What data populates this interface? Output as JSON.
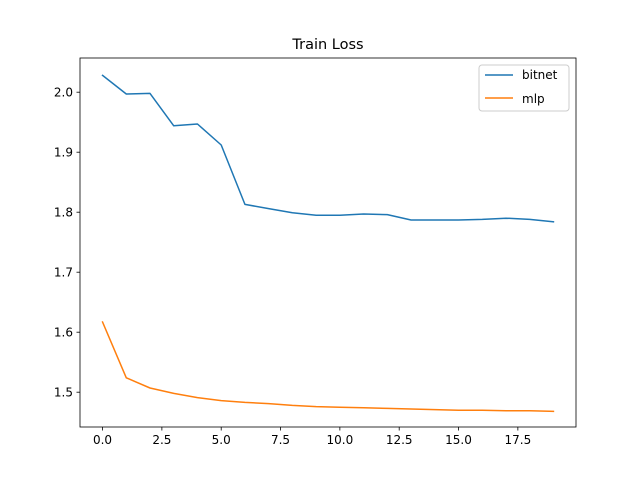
{
  "chart_data": {
    "type": "line",
    "title": "Train Loss",
    "xlabel": "",
    "ylabel": "",
    "xlim": [
      -0.95,
      19.95
    ],
    "ylim": [
      1.442,
      2.057
    ],
    "x_ticks": [
      0,
      2.5,
      5,
      7.5,
      10,
      12.5,
      15,
      17.5
    ],
    "x_tick_labels": [
      "0.0",
      "2.5",
      "5.0",
      "7.5",
      "10.0",
      "12.5",
      "15.0",
      "17.5"
    ],
    "y_ticks": [
      1.5,
      1.6,
      1.7,
      1.8,
      1.9,
      2.0
    ],
    "y_tick_labels": [
      "1.5",
      "1.6",
      "1.7",
      "1.8",
      "1.9",
      "2.0"
    ],
    "grid": false,
    "legend_position": "top-right",
    "x": [
      0,
      1,
      2,
      3,
      4,
      5,
      6,
      7,
      8,
      9,
      10,
      11,
      12,
      13,
      14,
      15,
      16,
      17,
      18,
      19
    ],
    "series": [
      {
        "name": "bitnet",
        "color": "#1f77b4",
        "values": [
          2.028,
          1.997,
          1.998,
          1.944,
          1.947,
          1.912,
          1.813,
          1.806,
          1.799,
          1.795,
          1.795,
          1.797,
          1.796,
          1.787,
          1.787,
          1.787,
          1.788,
          1.79,
          1.788,
          1.784
        ]
      },
      {
        "name": "mlp",
        "color": "#ff7f0e",
        "values": [
          1.617,
          1.524,
          1.507,
          1.498,
          1.491,
          1.486,
          1.483,
          1.481,
          1.478,
          1.476,
          1.475,
          1.474,
          1.473,
          1.472,
          1.471,
          1.47,
          1.47,
          1.469,
          1.469,
          1.468
        ]
      }
    ]
  }
}
